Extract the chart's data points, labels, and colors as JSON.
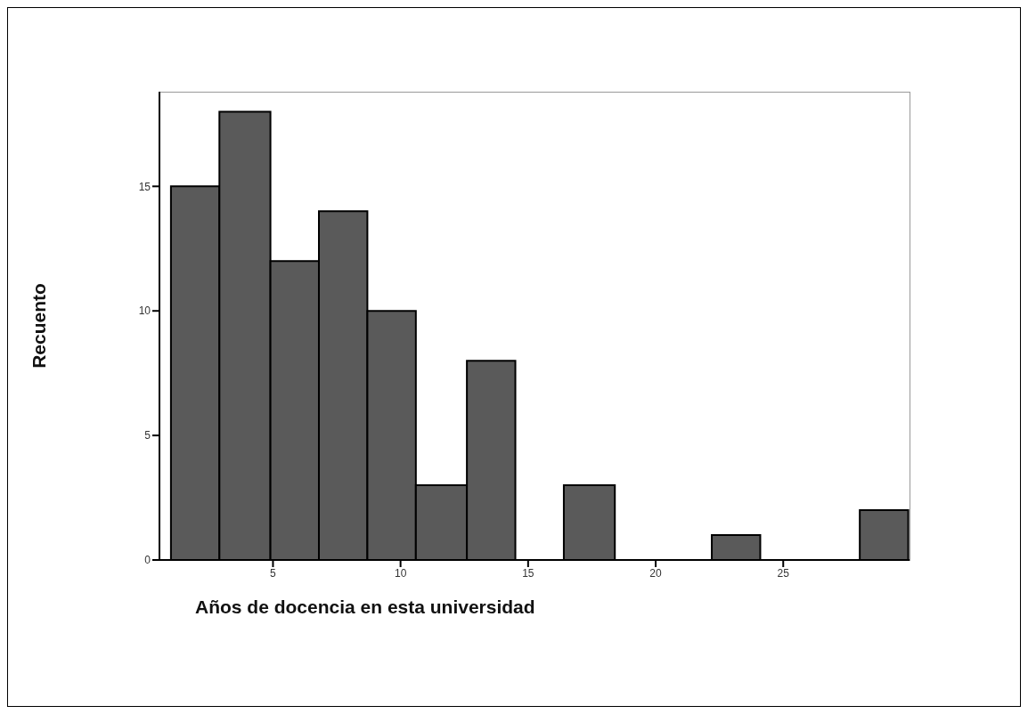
{
  "chart_data": {
    "type": "histogram",
    "xlabel": "Años de docencia en esta universidad",
    "ylabel": "Recuento",
    "bins": [
      1,
      2.9,
      4.9,
      6.8,
      8.7,
      10.6,
      12.6,
      14.5,
      16.4,
      18.4,
      22.2,
      24.1,
      28.0,
      29.9
    ],
    "values": [
      15,
      18,
      12,
      14,
      10,
      3,
      8,
      0,
      3,
      0,
      1,
      0,
      2
    ],
    "color": "#5a5a5a",
    "xlim": [
      0.55,
      29.95
    ],
    "xticks": [
      5,
      10,
      15,
      20,
      25
    ],
    "ylim": [
      0,
      18.8
    ],
    "yticks": [
      0,
      5,
      10,
      15
    ],
    "grid": false
  }
}
